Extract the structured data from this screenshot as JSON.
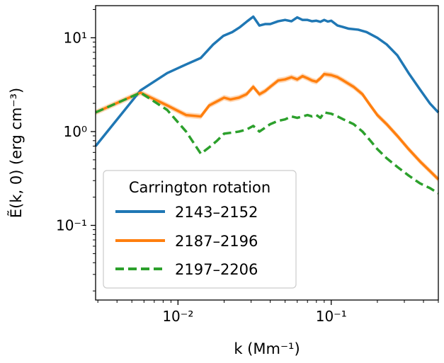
{
  "chart_data": {
    "type": "line",
    "title": "",
    "xlabel": "k (Mm⁻¹)",
    "ylabel": "Ẽ(k, 0) (erg cm⁻³)",
    "x_scale": "log",
    "y_scale": "log",
    "xlim": [
      0.0029,
      0.5
    ],
    "ylim": [
      0.016,
      22
    ],
    "x_ticks": [
      {
        "value": 0.01,
        "label": "10⁻²"
      },
      {
        "value": 0.1,
        "label": "10⁻¹"
      }
    ],
    "y_ticks": [
      {
        "value": 0.1,
        "label": "10⁻¹"
      },
      {
        "value": 1,
        "label": "10⁰"
      },
      {
        "value": 10,
        "label": "10¹"
      }
    ],
    "legend": {
      "title": "Carrington rotation",
      "placement": "lower-left"
    },
    "series": [
      {
        "name": "2143–2152",
        "color": "#1f77b4",
        "style": "solid",
        "band": false,
        "x": [
          0.0029,
          0.0057,
          0.0085,
          0.0113,
          0.0141,
          0.017,
          0.0198,
          0.0226,
          0.0254,
          0.0283,
          0.031,
          0.034,
          0.037,
          0.04,
          0.045,
          0.05,
          0.055,
          0.06,
          0.065,
          0.07,
          0.075,
          0.08,
          0.085,
          0.09,
          0.095,
          0.1,
          0.11,
          0.12,
          0.13,
          0.15,
          0.17,
          0.2,
          0.23,
          0.27,
          0.32,
          0.38,
          0.44,
          0.5
        ],
        "y": [
          0.7,
          2.75,
          4.2,
          5.2,
          6.1,
          8.5,
          10.5,
          11.5,
          13.0,
          15.0,
          16.8,
          13.5,
          14.0,
          14.0,
          15.0,
          15.5,
          15.0,
          16.5,
          15.5,
          15.5,
          15.0,
          15.2,
          14.8,
          15.5,
          14.9,
          15.2,
          13.5,
          13.0,
          12.5,
          12.2,
          11.5,
          10.0,
          8.5,
          6.5,
          4.2,
          2.8,
          2.0,
          1.6
        ]
      },
      {
        "name": "2187–2196",
        "color": "#ff7f0e",
        "style": "solid",
        "band": true,
        "x": [
          0.0029,
          0.0057,
          0.0085,
          0.0113,
          0.0141,
          0.016,
          0.018,
          0.02,
          0.022,
          0.025,
          0.028,
          0.031,
          0.034,
          0.037,
          0.04,
          0.045,
          0.05,
          0.055,
          0.06,
          0.065,
          0.07,
          0.075,
          0.08,
          0.085,
          0.09,
          0.1,
          0.11,
          0.12,
          0.14,
          0.16,
          0.18,
          0.2,
          0.23,
          0.27,
          0.32,
          0.38,
          0.44,
          0.5
        ],
        "y": [
          1.6,
          2.6,
          1.9,
          1.5,
          1.45,
          1.9,
          2.1,
          2.3,
          2.2,
          2.3,
          2.5,
          3.0,
          2.5,
          2.7,
          3.0,
          3.5,
          3.6,
          3.8,
          3.6,
          3.9,
          3.7,
          3.5,
          3.4,
          3.7,
          4.1,
          4.0,
          3.8,
          3.5,
          3.0,
          2.5,
          1.9,
          1.5,
          1.2,
          0.9,
          0.65,
          0.48,
          0.38,
          0.31
        ]
      },
      {
        "name": "2197–2206",
        "color": "#2ca02c",
        "style": "dashed",
        "band": false,
        "x": [
          0.0029,
          0.0057,
          0.0085,
          0.0113,
          0.0141,
          0.016,
          0.018,
          0.02,
          0.022,
          0.025,
          0.028,
          0.031,
          0.034,
          0.037,
          0.04,
          0.045,
          0.05,
          0.055,
          0.06,
          0.065,
          0.07,
          0.075,
          0.08,
          0.085,
          0.09,
          0.1,
          0.11,
          0.12,
          0.14,
          0.16,
          0.18,
          0.2,
          0.23,
          0.27,
          0.32,
          0.38,
          0.44,
          0.5
        ],
        "y": [
          1.6,
          2.6,
          1.7,
          1.0,
          0.58,
          0.68,
          0.8,
          0.95,
          0.97,
          1.0,
          1.05,
          1.15,
          1.0,
          1.1,
          1.2,
          1.3,
          1.35,
          1.45,
          1.4,
          1.45,
          1.5,
          1.45,
          1.5,
          1.4,
          1.6,
          1.55,
          1.45,
          1.35,
          1.2,
          1.0,
          0.8,
          0.65,
          0.52,
          0.42,
          0.34,
          0.28,
          0.25,
          0.22
        ]
      }
    ]
  }
}
